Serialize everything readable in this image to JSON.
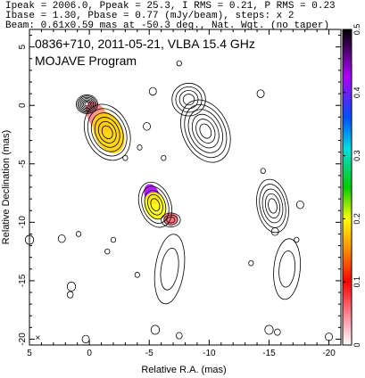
{
  "header": {
    "line1": "Ipeak = 2006.0, Ppeak = 25.3, I RMS = 0.21, P RMS = 0.23",
    "line2": "Ibase = 1.30, Pbase = 0.77 (mJy/beam), steps: x 2",
    "line3": "Beam: 0.61x0.59 mas at -50.3 deg., Nat. Wgt. (no taper)"
  },
  "chart_data": {
    "type": "heatmap",
    "title": "0836+710, 2011-05-21, VLBA 15.4 GHz",
    "subtitle": "MOJAVE Program",
    "xlabel": "Relative R.A. (mas)",
    "ylabel": "Relative Declination (mas)",
    "xlim": [
      5,
      -21
    ],
    "ylim": [
      -20.5,
      6.5
    ],
    "xticks": [
      5,
      0,
      -5,
      -10,
      -15,
      -20
    ],
    "xtick_labels": [
      "5",
      "0",
      "-5",
      "-10",
      "-15",
      "-20"
    ],
    "yticks": [
      5,
      0,
      -5,
      -10,
      -15,
      -20
    ],
    "ytick_labels": [
      "5",
      "0",
      "-5",
      "-10",
      "-15",
      "-20"
    ],
    "colorbar": {
      "range": [
        0,
        0.5
      ],
      "ticks": [
        0,
        0.1,
        0.2,
        0.3,
        0.4,
        0.5
      ],
      "tick_labels": [
        "0",
        "0.1",
        "0.2",
        "0.3",
        "0.4",
        "0.5"
      ]
    },
    "beam_marker": {
      "x": 4.3,
      "y": -19.8,
      "symbol": "×"
    },
    "contour_components": [
      {
        "x": 0.2,
        "y": 0.1,
        "rx": 0.9,
        "ry": 0.8,
        "rot": 0,
        "levels": 7
      },
      {
        "x": -1.5,
        "y": -2.3,
        "rx": 1.8,
        "ry": 2.5,
        "rot": -25,
        "levels": 6
      },
      {
        "x": -5.5,
        "y": -8.5,
        "rx": 1.3,
        "ry": 2.0,
        "rot": -20,
        "levels": 5
      },
      {
        "x": -6.8,
        "y": -9.8,
        "rx": 0.8,
        "ry": 0.6,
        "rot": 0,
        "levels": 3
      },
      {
        "x": -6.7,
        "y": -14.0,
        "rx": 1.2,
        "ry": 3.0,
        "rot": 8,
        "levels": 2
      }
    ],
    "polarization_patches": [
      {
        "x": -0.7,
        "y": -1.0,
        "rx": 0.8,
        "ry": 1.5,
        "rot": -30,
        "value": 0.05
      },
      {
        "x": -1.6,
        "y": -2.3,
        "rx": 1.2,
        "ry": 1.9,
        "rot": -25,
        "value": 0.18
      },
      {
        "x": -5.2,
        "y": -7.6,
        "rx": 0.6,
        "ry": 0.9,
        "rot": -20,
        "value": 0.42
      },
      {
        "x": -5.5,
        "y": -8.6,
        "rx": 0.9,
        "ry": 1.2,
        "rot": -20,
        "value": 0.2
      },
      {
        "x": -6.8,
        "y": -9.7,
        "rx": 0.6,
        "ry": 0.5,
        "rot": 0,
        "value": 0.06
      }
    ],
    "stokes_i_replica": {
      "offset_x": -10.0,
      "offset_y": 0.0,
      "components": [
        {
          "x": -8.3,
          "y": 0.5,
          "rx": 1.4,
          "ry": 1.4,
          "rot": 0,
          "levels": 4
        },
        {
          "x": -9.7,
          "y": -2.2,
          "rx": 1.9,
          "ry": 2.8,
          "rot": -25,
          "levels": 6
        },
        {
          "x": -15.3,
          "y": -8.6,
          "rx": 1.3,
          "ry": 2.3,
          "rot": -10,
          "levels": 5
        },
        {
          "x": -16.5,
          "y": -14.0,
          "rx": 1.1,
          "ry": 2.6,
          "rot": 5,
          "levels": 2
        }
      ]
    },
    "noise_islands": [
      {
        "x": -5.3,
        "y": 1.2,
        "r": 0.3
      },
      {
        "x": -4.8,
        "y": -1.8,
        "r": 0.3
      },
      {
        "x": -4.2,
        "y": -3.6,
        "r": 0.2
      },
      {
        "x": -6.2,
        "y": -4.5,
        "r": 0.2
      },
      {
        "x": -7.5,
        "y": 3.6,
        "r": 0.2
      },
      {
        "x": -14.3,
        "y": 1.0,
        "r": 0.3
      },
      {
        "x": -14.5,
        "y": -5.6,
        "r": 0.2
      },
      {
        "x": -15.5,
        "y": -10.8,
        "r": 0.3
      },
      {
        "x": -17.6,
        "y": -8.5,
        "r": 0.3
      },
      {
        "x": -17.3,
        "y": -11.5,
        "r": 0.2
      },
      {
        "x": -13.5,
        "y": -13.5,
        "r": 0.2
      },
      {
        "x": 2.3,
        "y": -11.4,
        "r": 0.3
      },
      {
        "x": -2.0,
        "y": -11.5,
        "r": 0.2
      },
      {
        "x": -1.5,
        "y": -12.5,
        "r": 0.2
      },
      {
        "x": 1.5,
        "y": -15.5,
        "r": 0.35
      },
      {
        "x": 0.9,
        "y": -11.0,
        "r": 0.2
      },
      {
        "x": 1.6,
        "y": -16.2,
        "r": 0.25
      },
      {
        "x": -5.5,
        "y": -19.2,
        "r": 0.35
      },
      {
        "x": -7.5,
        "y": -19.7,
        "r": 0.25
      },
      {
        "x": -15.0,
        "y": -19.2,
        "r": 0.35
      },
      {
        "x": -15.7,
        "y": -19.4,
        "r": 0.25
      },
      {
        "x": 0.3,
        "y": -20.0,
        "r": 0.3
      },
      {
        "x": -20.0,
        "y": -19.8,
        "r": 0.3
      },
      {
        "x": 5.0,
        "y": -11.5,
        "r": 0.35
      },
      {
        "x": -3.0,
        "y": -4.5,
        "r": 0.2
      },
      {
        "x": -4.0,
        "y": -14.5,
        "r": 0.2
      }
    ]
  }
}
